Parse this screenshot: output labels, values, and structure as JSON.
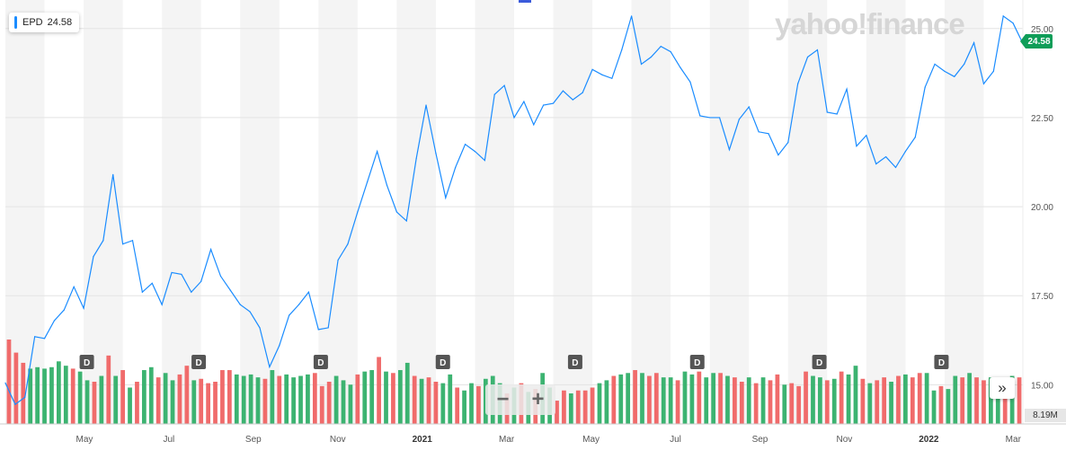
{
  "legend": {
    "symbol": "EPD",
    "price": "24.58"
  },
  "watermark": "yahoo!finance",
  "last_price_tag": "24.58",
  "volume_tag": "8.19M",
  "zoom": {
    "minus": "−",
    "plus": "+"
  },
  "nav_label": "»",
  "dividend_marker_label": "D",
  "colors": {
    "line": "#1a8cff",
    "up": "#3cb371",
    "down": "#f06b6b",
    "band": "#f4f4f4",
    "price_tag": "#0f9d58"
  },
  "chart_data": {
    "type": "line",
    "title": "",
    "xlabel": "",
    "ylabel": "",
    "ylim": [
      13.9,
      25.7
    ],
    "y_ticks": [
      "15.00",
      "17.50",
      "20.00",
      "22.50",
      "25.00"
    ],
    "x_ticks": [
      {
        "label": "May",
        "year": false
      },
      {
        "label": "Jul",
        "year": false
      },
      {
        "label": "Sep",
        "year": false
      },
      {
        "label": "Nov",
        "year": false
      },
      {
        "label": "2021",
        "year": true
      },
      {
        "label": "Mar",
        "year": false
      },
      {
        "label": "May",
        "year": false
      },
      {
        "label": "Jul",
        "year": false
      },
      {
        "label": "Sep",
        "year": false
      },
      {
        "label": "Nov",
        "year": false
      },
      {
        "label": "2022",
        "year": true
      },
      {
        "label": "Mar",
        "year": false
      }
    ],
    "grid": true,
    "series": [
      {
        "values": [
          15.05,
          14.45,
          14.65,
          16.35,
          16.3,
          16.8,
          17.1,
          17.75,
          17.15,
          18.6,
          19.05,
          20.9,
          18.95,
          19.05,
          17.6,
          17.85,
          17.25,
          18.15,
          18.1,
          17.6,
          17.9,
          18.8,
          18.05,
          17.65,
          17.25,
          17.05,
          16.6,
          15.5,
          16.1,
          16.95,
          17.25,
          17.6,
          16.55,
          16.6,
          18.5,
          18.95,
          19.85,
          20.7,
          21.55,
          20.6,
          19.85,
          19.6,
          21.35,
          22.85,
          21.5,
          20.25,
          21.1,
          21.75,
          21.55,
          21.3,
          23.15,
          23.4,
          22.5,
          22.95,
          22.3,
          22.85,
          22.9,
          23.25,
          23.0,
          23.2,
          23.85,
          23.7,
          23.6,
          24.4,
          25.35,
          24.0,
          24.2,
          24.5,
          24.35,
          23.9,
          23.5,
          22.55,
          22.5,
          22.5,
          21.6,
          22.45,
          22.8,
          22.1,
          22.05,
          21.45,
          21.8,
          23.45,
          24.2,
          24.4,
          22.65,
          22.6,
          23.3,
          21.7,
          22.0,
          21.2,
          21.4,
          21.1,
          21.55,
          21.95,
          23.35,
          24.0,
          23.8,
          23.65,
          24.0,
          24.6,
          23.45,
          23.8,
          25.35,
          25.15,
          24.58
        ]
      }
    ],
    "volume": {
      "values": [
        5.8,
        4.9,
        4.2,
        3.8,
        3.9,
        3.8,
        3.9,
        4.3,
        4.0,
        3.8,
        3.6,
        3.0,
        2.9,
        3.3,
        4.7,
        3.3,
        3.7,
        2.5,
        2.9,
        3.7,
        3.9,
        3.2,
        3.5,
        3.0,
        3.4,
        4.0,
        3.0,
        3.1,
        2.8,
        2.9,
        3.7,
        3.7,
        3.4,
        3.3,
        3.4,
        3.2,
        3.1,
        3.7,
        3.3,
        3.4,
        3.2,
        3.3,
        3.4,
        3.5,
        2.6,
        2.9,
        3.3,
        3.0,
        2.7,
        3.4,
        3.6,
        3.7,
        4.6,
        3.6,
        3.5,
        3.7,
        4.2,
        3.3,
        3.1,
        3.2,
        2.9,
        2.8,
        3.4,
        2.5,
        2.3,
        2.8,
        2.6,
        3.1,
        3.3,
        2.8,
        2.1,
        2.5,
        2.8,
        2.2,
        2.4,
        3.5,
        2.5,
        1.6,
        2.3,
        2.1,
        2.3,
        2.3,
        2.5,
        2.8,
        3.0,
        3.3,
        3.4,
        3.5,
        3.7,
        3.5,
        3.3,
        3.5,
        3.2,
        3.2,
        3.0,
        3.6,
        3.4,
        3.6,
        3.2,
        3.5,
        3.5,
        3.3,
        3.2,
        2.9,
        3.2,
        2.8,
        3.2,
        3.0,
        3.4,
        2.7,
        2.8,
        2.6,
        3.6,
        3.3,
        3.2,
        3.0,
        3.1,
        3.6,
        3.4,
        4.0,
        3.1,
        2.8,
        3.0,
        3.2,
        2.9,
        3.3,
        3.4,
        3.2,
        3.5,
        3.5,
        2.3,
        2.6,
        2.4,
        3.3,
        3.2,
        3.5,
        3.2,
        3.0,
        3.2,
        3.1,
        3.0,
        3.3,
        3.2
      ],
      "up": [
        0,
        0,
        0,
        1,
        1,
        1,
        1,
        1,
        1,
        0,
        1,
        1,
        0,
        1,
        0,
        1,
        0,
        1,
        0,
        1,
        1,
        0,
        1,
        1,
        0,
        0,
        1,
        0,
        0,
        0,
        0,
        0,
        1,
        1,
        1,
        1,
        0,
        1,
        0,
        1,
        1,
        1,
        1,
        0,
        0,
        0,
        1,
        1,
        1,
        0,
        1,
        1,
        0,
        1,
        0,
        1,
        1,
        0,
        1,
        0,
        0,
        1,
        1,
        0,
        1,
        1,
        0,
        1,
        1,
        1,
        0,
        1,
        0,
        1,
        0,
        1,
        1,
        0,
        0,
        1,
        0,
        0,
        0,
        1,
        1,
        0,
        1,
        1,
        0,
        1,
        0,
        0,
        1,
        1,
        0,
        1,
        1,
        0,
        1,
        1,
        0,
        1,
        0,
        0,
        1,
        0,
        1,
        0,
        0,
        1,
        0,
        0,
        0,
        1,
        1,
        0,
        1,
        0,
        1,
        1,
        0,
        1,
        0,
        0,
        1,
        0,
        1,
        0,
        0,
        1,
        1,
        0,
        1,
        1,
        0,
        1,
        0,
        0,
        1,
        1,
        0,
        1,
        0,
        1,
        0
      ]
    },
    "dividend_positions": [
      0.08,
      0.19,
      0.31,
      0.43,
      0.56,
      0.68,
      0.8,
      0.92
    ]
  }
}
